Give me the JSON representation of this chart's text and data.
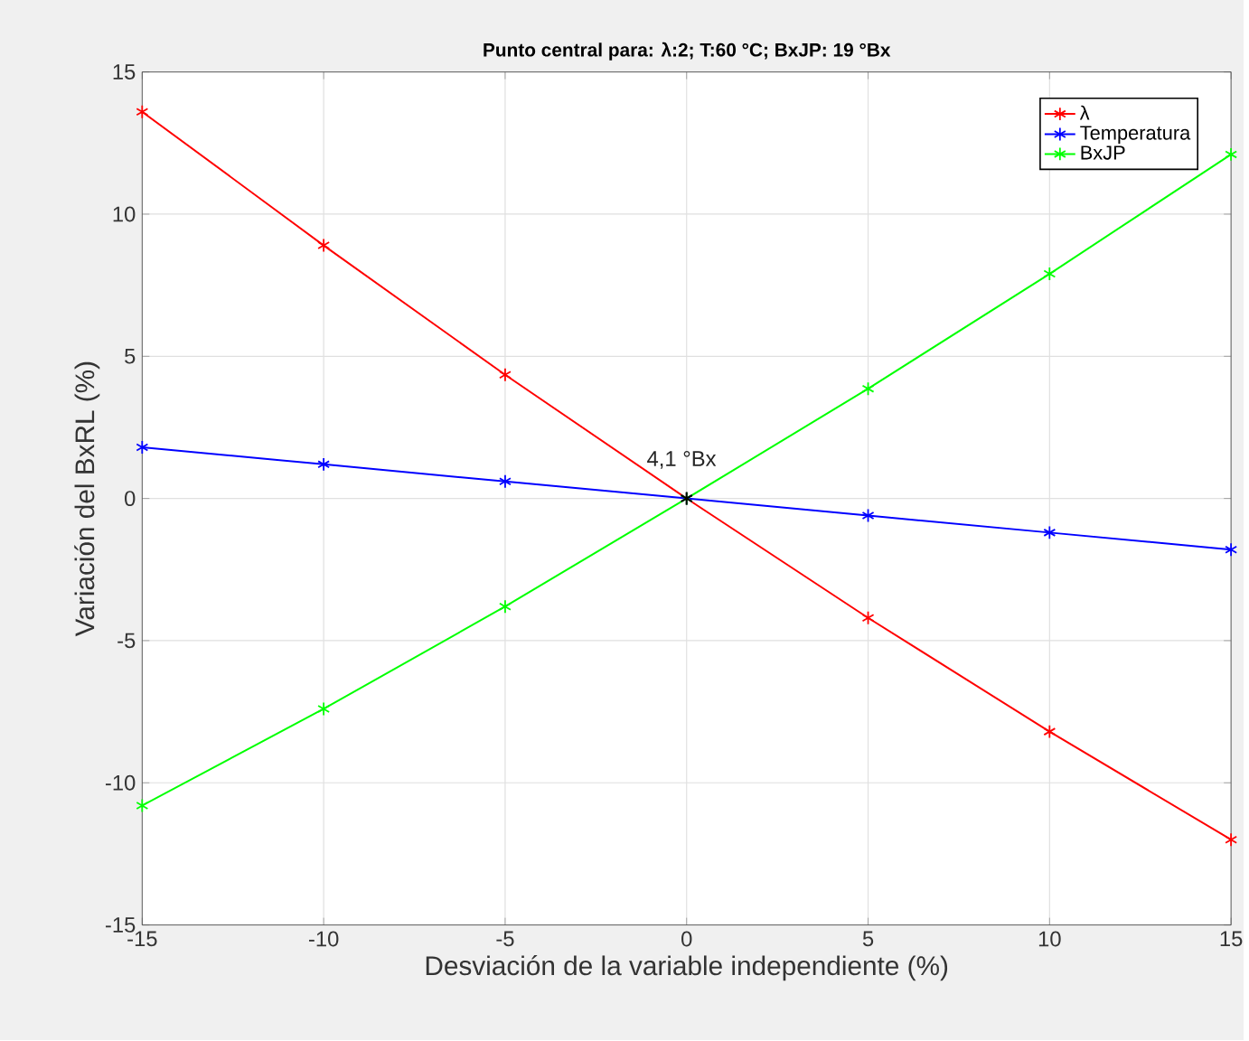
{
  "chart_data": {
    "type": "line",
    "title": "Punto central para: λ:2; T:60 °C; BxJP: 19 °Bx",
    "xlabel": "Desviación de la variable independiente (%)",
    "ylabel": "Variación del BxRL (%)",
    "x": [
      -15,
      -10,
      -5,
      0,
      5,
      10,
      15
    ],
    "series": [
      {
        "name": "λ",
        "color": "#ff0000",
        "values": [
          13.6,
          8.9,
          4.35,
          0,
          -4.2,
          -8.2,
          -12.0
        ]
      },
      {
        "name": "Temperatura",
        "color": "#0000ff",
        "values": [
          1.8,
          1.2,
          0.6,
          0,
          -0.6,
          -1.2,
          -1.8
        ]
      },
      {
        "name": "BxJP",
        "color": "#00ff00",
        "values": [
          -10.8,
          -7.4,
          -3.8,
          0,
          3.86,
          7.9,
          12.1
        ]
      },
      {
        "type": "scatter",
        "color": "#000000",
        "x": [
          0
        ],
        "values": [
          0
        ],
        "marker": "cross"
      }
    ],
    "annotations": [
      {
        "text": "4,1 °Bx",
        "x": 0,
        "y": 0
      }
    ],
    "xlim": [
      -15,
      15
    ],
    "ylim": [
      -15,
      15
    ],
    "xticks": [
      -15,
      -10,
      -5,
      0,
      5,
      10,
      15
    ],
    "yticks": [
      -15,
      -10,
      -5,
      0,
      5,
      10,
      15
    ],
    "grid": true,
    "legend": "top right",
    "marker": "cross",
    "line_style": "solid"
  }
}
